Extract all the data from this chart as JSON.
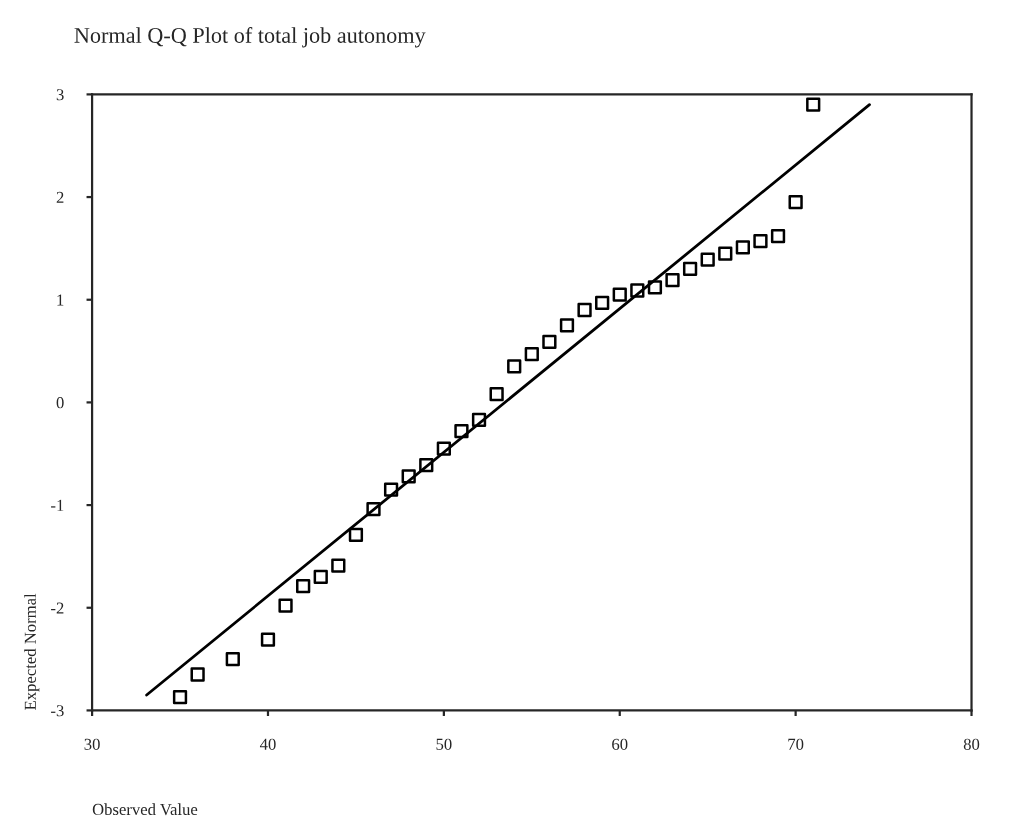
{
  "chart_data": {
    "type": "scatter",
    "title": "Normal Q-Q Plot of total job autonomy",
    "xlabel": "Observed Value",
    "ylabel": "Expected Normal",
    "series": [
      {
        "color": "#000000",
        "marker": "square",
        "x": [
          35,
          36,
          38,
          40,
          41,
          42,
          43,
          44,
          45,
          46,
          47,
          48,
          49,
          50,
          51,
          52,
          53,
          54,
          55,
          56,
          57,
          58,
          59,
          60,
          61,
          62,
          63,
          64,
          65,
          66,
          67,
          68,
          69,
          70,
          71
        ],
        "values": [
          -2.87,
          -2.65,
          -2.5,
          -2.31,
          -1.98,
          -1.79,
          -1.7,
          -1.59,
          -1.29,
          -1.04,
          -0.85,
          -0.72,
          -0.61,
          -0.45,
          -0.28,
          -0.17,
          0.08,
          0.35,
          0.47,
          0.59,
          0.75,
          0.9,
          0.97,
          1.05,
          1.09,
          1.12,
          1.19,
          1.3,
          1.39,
          1.45,
          1.51,
          1.57,
          1.62,
          1.95,
          2.9
        ]
      },
      {
        "type": "line",
        "color": "#000000",
        "marker": "none",
        "line_style": "solid",
        "x": [
          33.1,
          74.2
        ],
        "values": [
          -2.85,
          2.9
        ]
      }
    ],
    "xlim": [
      30,
      80
    ],
    "xticks": [
      30,
      40,
      50,
      60,
      70,
      80
    ],
    "ylim": [
      -3,
      3
    ],
    "yticks": [
      -3,
      -2,
      -1,
      0,
      1,
      2,
      3
    ],
    "grid": false,
    "legend": false
  }
}
